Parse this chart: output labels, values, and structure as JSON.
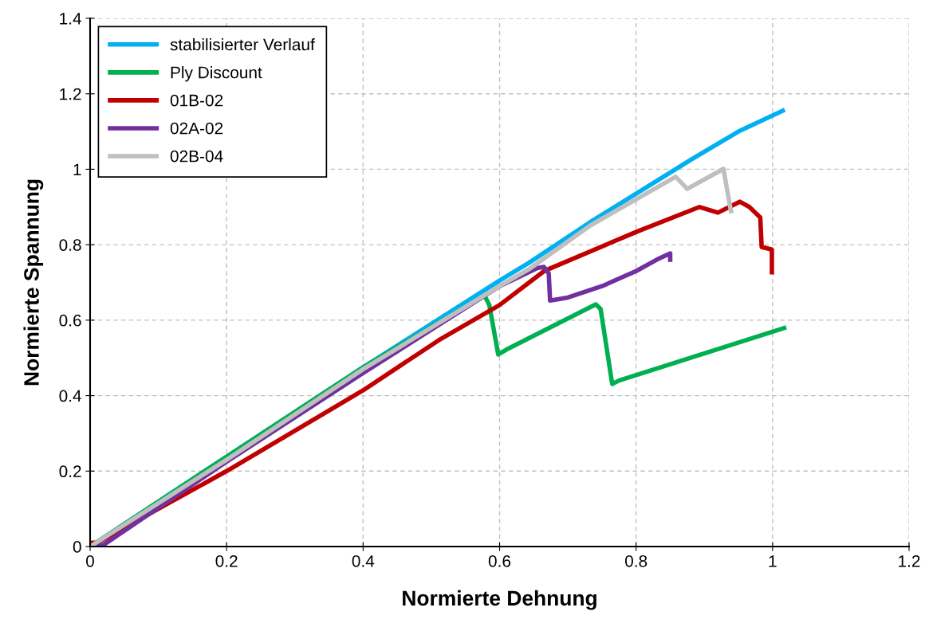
{
  "chart_data": {
    "type": "line",
    "xlabel": "Normierte Dehnung",
    "ylabel": "Normierte Spannung",
    "xlim": [
      0,
      1.2
    ],
    "xticks": [
      0,
      0.2,
      0.4,
      0.6,
      0.8,
      1,
      1.2
    ],
    "ylim": [
      0,
      1.4
    ],
    "yticks": [
      0,
      0.2,
      0.4,
      0.6,
      0.8,
      1,
      1.2,
      1.4
    ],
    "grid": true,
    "legend": "top left",
    "marker": "none",
    "line_style": "solid",
    "series": [
      {
        "name": "stabilisierter Verlauf",
        "color": "#00b0f0",
        "x": [
          0,
          0.2,
          0.4,
          0.6,
          0.643,
          0.733,
          0.881,
          0.95,
          1.015
        ],
        "values": [
          0,
          0.238,
          0.475,
          0.705,
          0.752,
          0.86,
          1.026,
          1.1,
          1.155
        ]
      },
      {
        "name": "Ply Discount",
        "color": "#00b050",
        "x": [
          0,
          0.2,
          0.4,
          0.578,
          0.585,
          0.598,
          0.61,
          0.741,
          0.748,
          0.765,
          0.775,
          1.017
        ],
        "values": [
          0,
          0.238,
          0.475,
          0.665,
          0.64,
          0.509,
          0.522,
          0.642,
          0.63,
          0.431,
          0.44,
          0.579
        ]
      },
      {
        "name": "01B-02",
        "color": "#c00000",
        "x": [
          0,
          0.01,
          0.2,
          0.4,
          0.511,
          0.6,
          0.666,
          0.803,
          0.893,
          0.92,
          0.952,
          0.966,
          0.982,
          0.984,
          0.999,
          0.999
        ],
        "values": [
          0.01,
          0.01,
          0.2,
          0.414,
          0.547,
          0.64,
          0.731,
          0.836,
          0.9,
          0.885,
          0.914,
          0.9,
          0.872,
          0.794,
          0.787,
          0.727
        ]
      },
      {
        "name": "02A-02",
        "color": "#7030a0",
        "x": [
          0,
          0.02,
          0.2,
          0.4,
          0.6,
          0.655,
          0.665,
          0.672,
          0.674,
          0.7,
          0.75,
          0.8,
          0.83,
          0.85,
          0.85
        ],
        "values": [
          0,
          0.005,
          0.225,
          0.46,
          0.69,
          0.738,
          0.741,
          0.724,
          0.652,
          0.66,
          0.69,
          0.73,
          0.76,
          0.777,
          0.76
        ]
      },
      {
        "name": "02B-04",
        "color": "#bfbfbf",
        "x": [
          0,
          0.2,
          0.4,
          0.6,
          0.643,
          0.733,
          0.858,
          0.875,
          0.9,
          0.928,
          0.939
        ],
        "values": [
          0,
          0.23,
          0.47,
          0.69,
          0.735,
          0.851,
          0.98,
          0.948,
          0.973,
          1.001,
          0.889
        ]
      }
    ]
  }
}
